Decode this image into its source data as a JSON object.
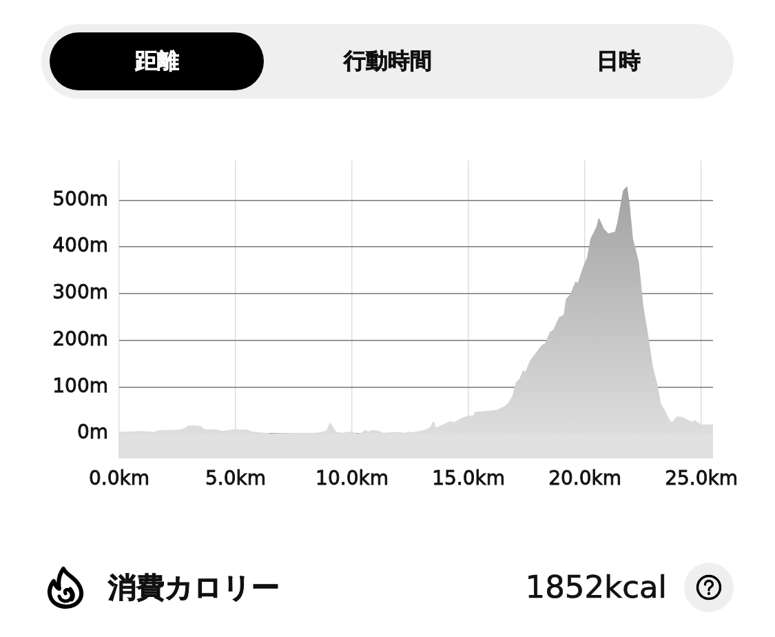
{
  "chart_data": {
    "type": "area",
    "annotations": [
      "距離",
      "行動時間",
      "日時",
      "消費カロリー",
      "1852kcal"
    ],
    "x": [
      0,
      0.5,
      0.9,
      1.3,
      1.5,
      1.7,
      2.1,
      2.6,
      2.8,
      2.97,
      3.5,
      3.66,
      4.2,
      4.45,
      4.94,
      5.5,
      5.7,
      6.1,
      6.5,
      7.8,
      8.5,
      8.9,
      9.06,
      9.3,
      9.5,
      10.0,
      10.2,
      10.4,
      10.56,
      10.7,
      10.86,
      11.1,
      11.35,
      11.9,
      12.3,
      12.4,
      12.5,
      12.8,
      13.15,
      13.35,
      13.5,
      13.6,
      13.9,
      14.2,
      14.4,
      14.7,
      15.0,
      15.2,
      15.3,
      15.6,
      16.0,
      16.2,
      16.5,
      16.7,
      16.9,
      17.05,
      17.2,
      17.35,
      17.45,
      17.65,
      17.95,
      18.15,
      18.3,
      18.5,
      18.65,
      18.9,
      19.1,
      19.2,
      19.4,
      19.6,
      19.7,
      19.95,
      20.1,
      20.25,
      20.5,
      20.6,
      20.8,
      21.0,
      21.3,
      21.4,
      21.65,
      21.8,
      21.9,
      22.05,
      22.3,
      22.5,
      22.7,
      22.9,
      23.1,
      23.25,
      23.4,
      23.65,
      23.75,
      23.95,
      24.2,
      24.45,
      24.6,
      24.7,
      25.0,
      25.5
    ],
    "series": [
      {
        "color": "#9c9c9c",
        "values": [
          3,
          4,
          5,
          4,
          3,
          7,
          7,
          8,
          11,
          17,
          16,
          9,
          8,
          5,
          9,
          8,
          4,
          2,
          0,
          1,
          1,
          6,
          23,
          4,
          1,
          4,
          0,
          1,
          8,
          4,
          7,
          6,
          1,
          3,
          1,
          4,
          2,
          4,
          8,
          13,
          26,
          12,
          19,
          26,
          24,
          33,
          38,
          38,
          46,
          47,
          49,
          50,
          57,
          64,
          81,
          110,
          117,
          135,
          131,
          156,
          176,
          189,
          193,
          217,
          222,
          249,
          254,
          288,
          300,
          325,
          322,
          359,
          376,
          417,
          442,
          461,
          439,
          428,
          432,
          451,
          520,
          529,
          495,
          417,
          368,
          271,
          212,
          144,
          105,
          64,
          52,
          27,
          25,
          36,
          35,
          28,
          25,
          28,
          19,
          19
        ]
      }
    ],
    "bands": [
      {
        "axis": "y",
        "from": -53,
        "to": 0,
        "color": "#e0e0e0"
      }
    ],
    "xlim": [
      0,
      25.5
    ],
    "ylim": [
      -53,
      585
    ],
    "xticks": [
      {
        "value": 0,
        "label": "0.0km"
      },
      {
        "value": 5,
        "label": "5.0km"
      },
      {
        "value": 10,
        "label": "10.0km"
      },
      {
        "value": 15,
        "label": "15.0km"
      },
      {
        "value": 20,
        "label": "20.0km"
      },
      {
        "value": 25,
        "label": "25.0km"
      }
    ],
    "yticks": [
      {
        "value": 0,
        "label": "0m"
      },
      {
        "value": 100,
        "label": "100m"
      },
      {
        "value": 200,
        "label": "200m"
      },
      {
        "value": 300,
        "label": "300m"
      },
      {
        "value": 400,
        "label": "400m"
      },
      {
        "value": 500,
        "label": "500m"
      }
    ],
    "grid": true
  }
}
